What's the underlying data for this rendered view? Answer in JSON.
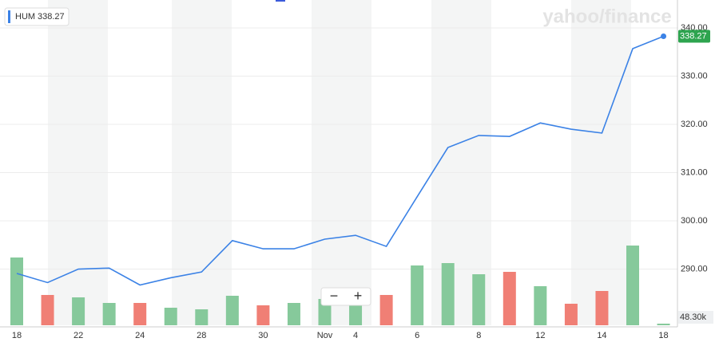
{
  "chart_data": {
    "type": "line",
    "watermark": "yahoo/finance",
    "controls": [
      "−",
      "+"
    ],
    "categories": [
      "18",
      null,
      "22",
      null,
      "24",
      null,
      "28",
      null,
      "30",
      null,
      "Nov",
      "4",
      null,
      "6",
      null,
      "8",
      null,
      "12",
      null,
      "14",
      null,
      "18"
    ],
    "series": [
      {
        "name": "HUM",
        "color": "#3b82e6",
        "values": [
          289.1,
          287.2,
          290.0,
          290.2,
          286.7,
          288.2,
          289.4,
          295.9,
          294.2,
          294.2,
          296.2,
          297.0,
          294.7,
          305.0,
          315.2,
          317.7,
          317.5,
          320.3,
          319.0,
          318.2,
          335.7,
          338.27
        ]
      }
    ],
    "volume": {
      "up_color": "#86c99b",
      "down_color": "#f07f75",
      "values": [
        2040000,
        912000,
        840000,
        672000,
        672000,
        528000,
        480000,
        888000,
        600000,
        672000,
        792000,
        792000,
        912000,
        1800000,
        1872000,
        1536000,
        1608000,
        1176000,
        648000,
        1032000,
        2400000,
        48300
      ],
      "value_labels": [
        null,
        null,
        null,
        null,
        null,
        null,
        null,
        null,
        null,
        null,
        null,
        null,
        null,
        null,
        null,
        null,
        null,
        null,
        null,
        null,
        null,
        "48.30k"
      ]
    },
    "ylim": [
      278.35,
      345.79
    ],
    "yticks": [
      {
        "value": 290,
        "label": "290.00"
      },
      {
        "value": 300,
        "label": "300.00"
      },
      {
        "value": 310,
        "label": "310.00"
      },
      {
        "value": 320,
        "label": "320.00"
      },
      {
        "value": 330,
        "label": "330.00"
      },
      {
        "value": 340,
        "label": "340.00"
      }
    ],
    "y2lim": [
      0,
      9672000
    ],
    "grid": true
  }
}
